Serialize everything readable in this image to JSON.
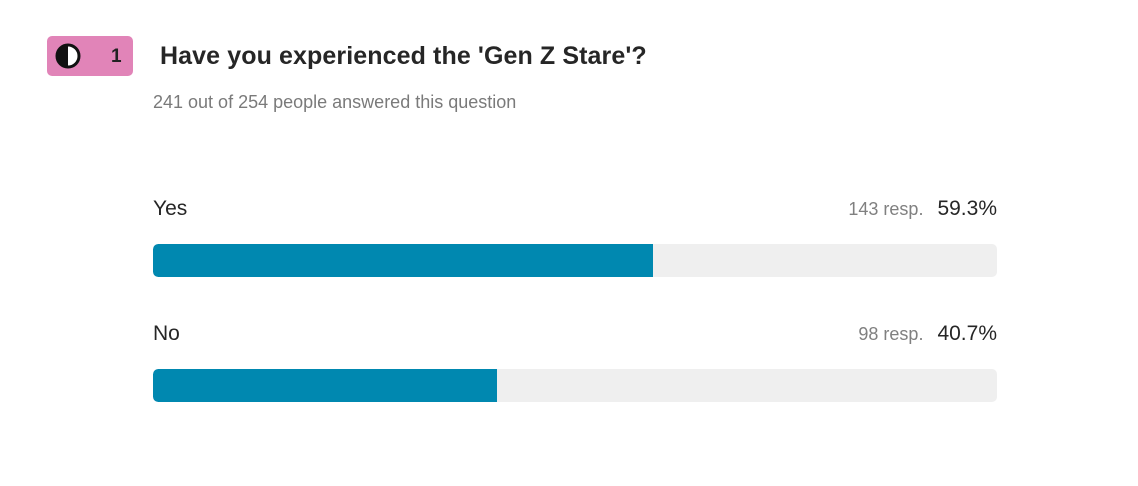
{
  "question": {
    "number": "1",
    "badge_icon": "half-circle-icon",
    "badge_color": "#e184b8",
    "title": "Have you experienced the 'Gen Z Stare'?",
    "summary": "241 out of 254 people answered this question"
  },
  "bar_color": "#0088b0",
  "track_color": "#efefef",
  "options": [
    {
      "label": "Yes",
      "count": "143 resp.",
      "percent": "59.3%",
      "fraction": 0.593
    },
    {
      "label": "No",
      "count": "98 resp.",
      "percent": "40.7%",
      "fraction": 0.407
    }
  ]
}
